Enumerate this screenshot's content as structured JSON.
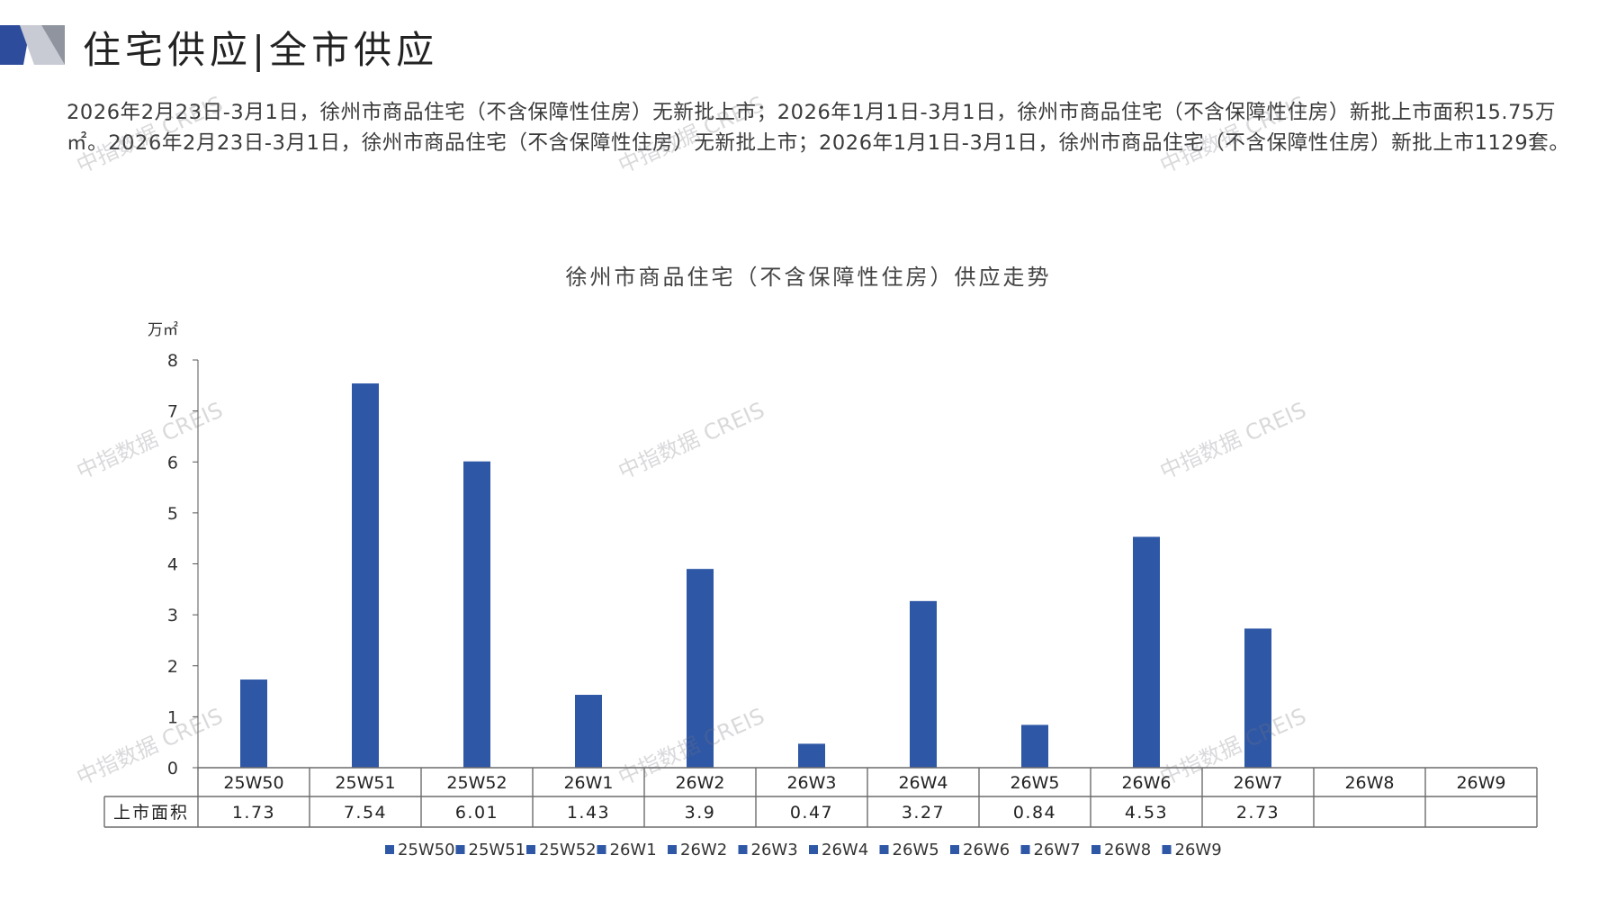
{
  "header": {
    "title": "住宅供应|全市供应",
    "accent_color": "#2E4C9C"
  },
  "summary": {
    "text": "2026年2月23日-3月1日，徐州市商品住宅（不含保障性住房）无新批上市；2026年1月1日-3月1日，徐州市商品住宅（不含保障性住房）新批上市面积15.75万㎡。2026年2月23日-3月1日，徐州市商品住宅（不含保障性住房）无新批上市；2026年1月1日-3月1日，徐州市商品住宅（不含保障性住房）新批上市1129套。"
  },
  "watermark": {
    "text": "中指数据 CREIS"
  },
  "chart_data": {
    "type": "bar",
    "title": "徐州市商品住宅（不含保障性住房）供应走势",
    "unit": "万㎡",
    "categories": [
      "25W50",
      "25W51",
      "25W52",
      "26W1",
      "26W2",
      "26W3",
      "26W4",
      "26W5",
      "26W6",
      "26W7",
      "26W8",
      "26W9"
    ],
    "series": [
      {
        "name": "上市面积",
        "values": [
          1.73,
          7.54,
          6.01,
          1.43,
          3.9,
          0.47,
          3.27,
          0.84,
          4.53,
          2.73,
          null,
          null
        ],
        "labels": [
          "1.73",
          "7.54",
          "6.01",
          "1.43",
          "3.9",
          "0.47",
          "3.27",
          "0.84",
          "4.53",
          "2.73",
          "",
          ""
        ]
      }
    ],
    "ylim": [
      0,
      8
    ],
    "yticks": [
      0,
      1,
      2,
      3,
      4,
      5,
      6,
      7,
      8
    ],
    "legend_position": "bottom",
    "data_table": true,
    "bar_color": "#2E57A6"
  }
}
